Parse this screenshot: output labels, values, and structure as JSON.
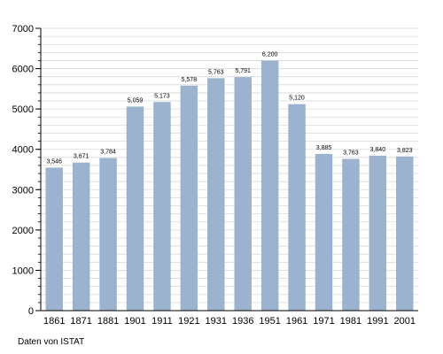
{
  "chart_data": {
    "type": "bar",
    "title": "",
    "xlabel": "",
    "ylabel": "",
    "categories": [
      "1861",
      "1871",
      "1881",
      "1901",
      "1911",
      "1921",
      "1931",
      "1936",
      "1951",
      "1961",
      "1971",
      "1981",
      "1991",
      "2001"
    ],
    "values": [
      3546,
      3671,
      3784,
      5059,
      5173,
      5578,
      5763,
      5791,
      6200,
      5120,
      3885,
      3763,
      3840,
      3823
    ],
    "data_labels": [
      "3,546",
      "3,671",
      "3,784",
      "5,059",
      "5,173",
      "5,578",
      "5,763",
      "5,791",
      "6,200",
      "5,120",
      "3,885",
      "3,763",
      "3,840",
      "3,823"
    ],
    "ylim": [
      0,
      7000
    ],
    "yticks": [
      "0",
      "1000",
      "2000",
      "3000",
      "4000",
      "5000",
      "6000",
      "7000"
    ],
    "grid": true,
    "bar_color": "#9bb3ce",
    "grid_color": "#d9d9d9"
  },
  "source": "Daten von ISTAT"
}
